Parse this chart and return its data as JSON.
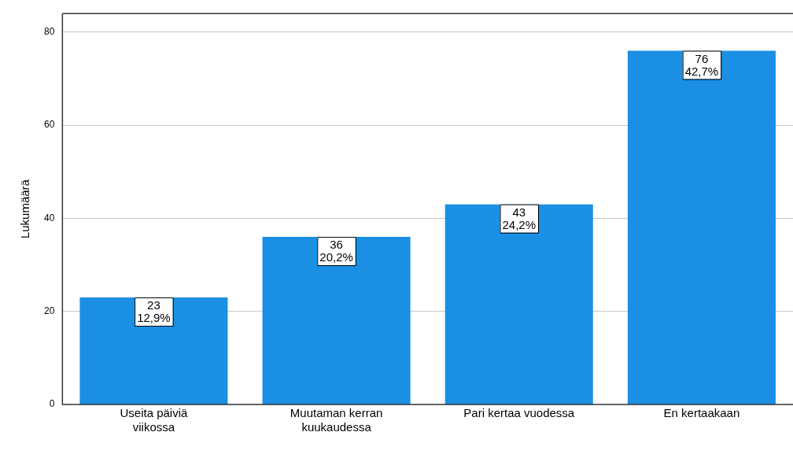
{
  "chart_data": {
    "type": "bar",
    "ylabel": "Lukumäärä",
    "categories": [
      "Useita päiviä viikossa",
      "Muutaman kerran kuukaudessa",
      "Pari kertaa vuodessa",
      "En kertaakaan"
    ],
    "values": [
      23,
      36,
      43,
      76
    ],
    "value_labels": [
      "23\n12,9%",
      "36\n20,2%",
      "43\n24,2%",
      "76\n42,7%"
    ],
    "color": "#1a8fe3",
    "ylim": [
      0,
      84
    ],
    "yticks": [
      0,
      20,
      40,
      60,
      80
    ],
    "grid": "y",
    "legend": false
  }
}
